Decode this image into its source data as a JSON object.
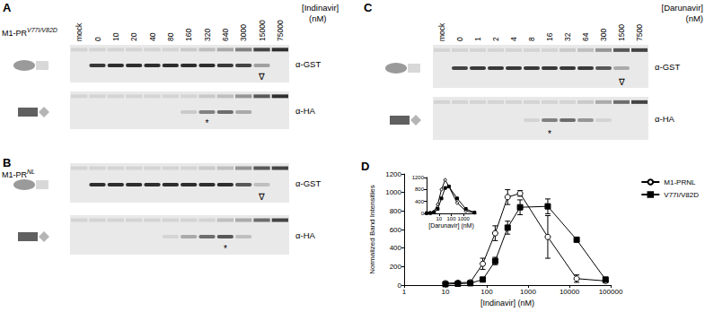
{
  "blots": [
    {
      "panel": "A",
      "construct": "M1-PR",
      "construct_sup": "V77I/V82D",
      "drug": "[Indinavir]",
      "unit": "(nM)",
      "lanes": [
        "mock",
        "0",
        "10",
        "20",
        "40",
        "80",
        "160",
        "320",
        "640",
        "3000",
        "15000",
        "75000"
      ],
      "rows": [
        {
          "antibody": "α-GST",
          "main": [
            0,
            0.85,
            0.9,
            0.9,
            0.9,
            0.9,
            0.9,
            0.9,
            0.85,
            0.8,
            0.35,
            0
          ],
          "top": [
            0.1,
            0.1,
            0.1,
            0.1,
            0.1,
            0.1,
            0.15,
            0.2,
            0.3,
            0.5,
            0.8,
            0.9
          ],
          "mark": {
            "text": "∇",
            "lane": 10
          }
        },
        {
          "antibody": "α-HA",
          "main": [
            0,
            0,
            0,
            0,
            0,
            0,
            0.15,
            0.5,
            0.6,
            0.3,
            0,
            0
          ],
          "top": [
            0.1,
            0.1,
            0.1,
            0.1,
            0.1,
            0.1,
            0.1,
            0.15,
            0.2,
            0.4,
            0.7,
            0.9
          ],
          "mark": {
            "text": "*",
            "lane": 7
          }
        }
      ]
    },
    {
      "panel": "B",
      "construct": "M1-PR",
      "construct_sup": "NL",
      "rows": [
        {
          "antibody": "α-GST",
          "main": [
            0,
            0.9,
            0.9,
            0.9,
            0.9,
            0.9,
            0.9,
            0.9,
            0.9,
            0.7,
            0.2,
            0
          ],
          "top": [
            0.1,
            0.1,
            0.1,
            0.1,
            0.1,
            0.1,
            0.1,
            0.15,
            0.2,
            0.4,
            0.7,
            0.8
          ],
          "mark": {
            "text": "∇",
            "lane": 10
          }
        },
        {
          "antibody": "α-HA",
          "main": [
            0,
            0,
            0,
            0,
            0,
            0.1,
            0.3,
            0.6,
            0.7,
            0.2,
            0,
            0
          ],
          "top": [
            0.1,
            0.1,
            0.1,
            0.1,
            0.1,
            0.1,
            0.1,
            0.1,
            0.2,
            0.3,
            0.6,
            0.8
          ],
          "mark": {
            "text": "*",
            "lane": 8
          }
        }
      ]
    },
    {
      "panel": "C",
      "drug": "[Darunavir]",
      "unit": "(nM)",
      "lanes": [
        "mock",
        "0",
        "1",
        "2",
        "4",
        "8",
        "16",
        "32",
        "64",
        "300",
        "1500",
        "7500"
      ],
      "rows": [
        {
          "antibody": "α-GST",
          "main": [
            0,
            0.8,
            0.85,
            0.85,
            0.85,
            0.85,
            0.85,
            0.85,
            0.85,
            0.7,
            0.3,
            0
          ],
          "top": [
            0.1,
            0.1,
            0.1,
            0.1,
            0.1,
            0.1,
            0.1,
            0.15,
            0.2,
            0.4,
            0.7,
            0.8
          ],
          "mark": {
            "text": "∇",
            "lane": 10
          }
        },
        {
          "antibody": "α-HA",
          "main": [
            0,
            0,
            0,
            0,
            0,
            0.1,
            0.5,
            0.6,
            0.4,
            0.1,
            0,
            0
          ],
          "top": [
            0.1,
            0.1,
            0.1,
            0.1,
            0.1,
            0.1,
            0.1,
            0.1,
            0.15,
            0.3,
            0.6,
            0.8
          ],
          "mark": {
            "text": "*",
            "lane": 6
          }
        }
      ]
    }
  ],
  "chart_data": {
    "panel": "D",
    "type": "line",
    "xlabel": "[Indinavir] (nM)",
    "ylabel": "Normalized Band Intensities",
    "log": "x",
    "grid": false,
    "legend": "upper right",
    "xlim": [
      1,
      100000
    ],
    "xticks": [
      1,
      10,
      100,
      1000,
      10000,
      100000
    ],
    "ylim": [
      0,
      1200
    ],
    "yticks": [
      0,
      200,
      400,
      600,
      800,
      1000,
      1200
    ],
    "x": [
      10,
      20,
      40,
      80,
      160,
      320,
      640,
      3000,
      15000,
      75000
    ],
    "series": [
      {
        "name": "M1-PRNL",
        "color": "#000000",
        "marker": "circle_open",
        "values": [
          20,
          25,
          30,
          230,
          560,
          950,
          990,
          520,
          70,
          45
        ],
        "errors": [
          10,
          10,
          15,
          60,
          80,
          80,
          30,
          230,
          40,
          20
        ]
      },
      {
        "name": "V77I/V82D",
        "color": "#000000",
        "marker": "square",
        "values": [
          10,
          15,
          20,
          60,
          260,
          620,
          840,
          850,
          490,
          60
        ],
        "errors": [
          5,
          5,
          5,
          20,
          40,
          70,
          80,
          80,
          20,
          20
        ]
      }
    ],
    "inset": {
      "type": "line",
      "xlabel": "[Darunavir] (nM)",
      "log": "x",
      "xlim": [
        1,
        10000
      ],
      "xticks": [
        10,
        100,
        1000
      ],
      "ylim": [
        0,
        1200
      ],
      "yticks": [
        0,
        400,
        800,
        1200
      ],
      "x": [
        1,
        2,
        4,
        8,
        16,
        32,
        64,
        300,
        1500,
        7500
      ],
      "series": [
        {
          "color": "#000000",
          "marker": "circle_open",
          "values": [
            10,
            20,
            60,
            300,
            800,
            1120,
            900,
            350,
            80,
            20
          ]
        },
        {
          "color": "#000000",
          "marker": "square",
          "values": [
            5,
            10,
            30,
            150,
            500,
            850,
            900,
            500,
            150,
            30
          ]
        }
      ]
    }
  }
}
